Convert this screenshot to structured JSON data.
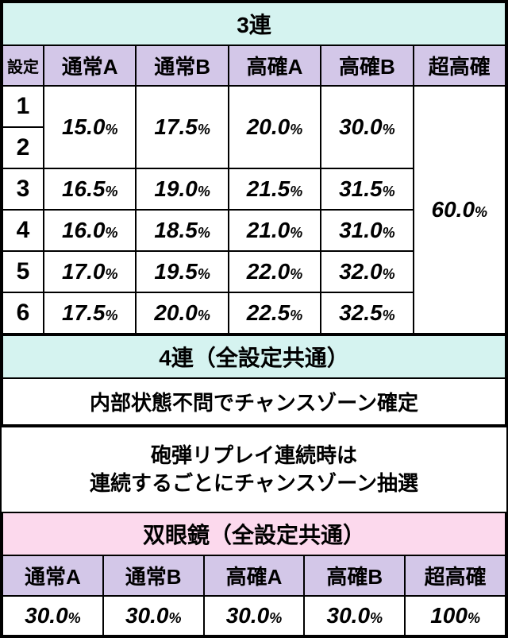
{
  "colors": {
    "header_cyan": "#d5f3f0",
    "header_purple": "#d3c7e8",
    "header_pink": "#fcd9ed",
    "border": "#000000",
    "background": "#ffffff",
    "text": "#000000"
  },
  "typography": {
    "header_fontsize": 28,
    "colhdr_fontsize": 26,
    "settei_fontsize": 30,
    "value_num_fontsize": 28,
    "value_pct_fontsize": 18,
    "note_fontsize": 26,
    "font_weight": "800",
    "value_style": "italic"
  },
  "section1": {
    "title": "3連",
    "settei_label": "設定",
    "columns": [
      "通常A",
      "通常B",
      "高確A",
      "高確B",
      "超高確"
    ],
    "rows": [
      {
        "settei": "1",
        "vals": [
          "15.0",
          "17.5",
          "20.0",
          "30.0"
        ],
        "merge_down": true
      },
      {
        "settei": "2"
      },
      {
        "settei": "3",
        "vals": [
          "16.5",
          "19.0",
          "21.5",
          "31.5"
        ]
      },
      {
        "settei": "4",
        "vals": [
          "16.0",
          "18.5",
          "21.0",
          "31.0"
        ]
      },
      {
        "settei": "5",
        "vals": [
          "17.0",
          "19.5",
          "22.0",
          "32.0"
        ]
      },
      {
        "settei": "6",
        "vals": [
          "17.5",
          "20.0",
          "22.5",
          "32.5"
        ]
      }
    ],
    "last_col_merged": "60.0",
    "pct": "%"
  },
  "section2": {
    "title": "4連（全設定共通）",
    "note": "内部状態不問でチャンスゾーン確定"
  },
  "free_note": {
    "line1": "砲弾リプレイ連続時は",
    "line2": "連続するごとにチャンスゾーン抽選"
  },
  "section3": {
    "title": "双眼鏡（全設定共通）",
    "columns": [
      "通常A",
      "通常B",
      "高確A",
      "高確B",
      "超高確"
    ],
    "vals": [
      "30.0",
      "30.0",
      "30.0",
      "30.0",
      "100"
    ],
    "pct": "%"
  }
}
